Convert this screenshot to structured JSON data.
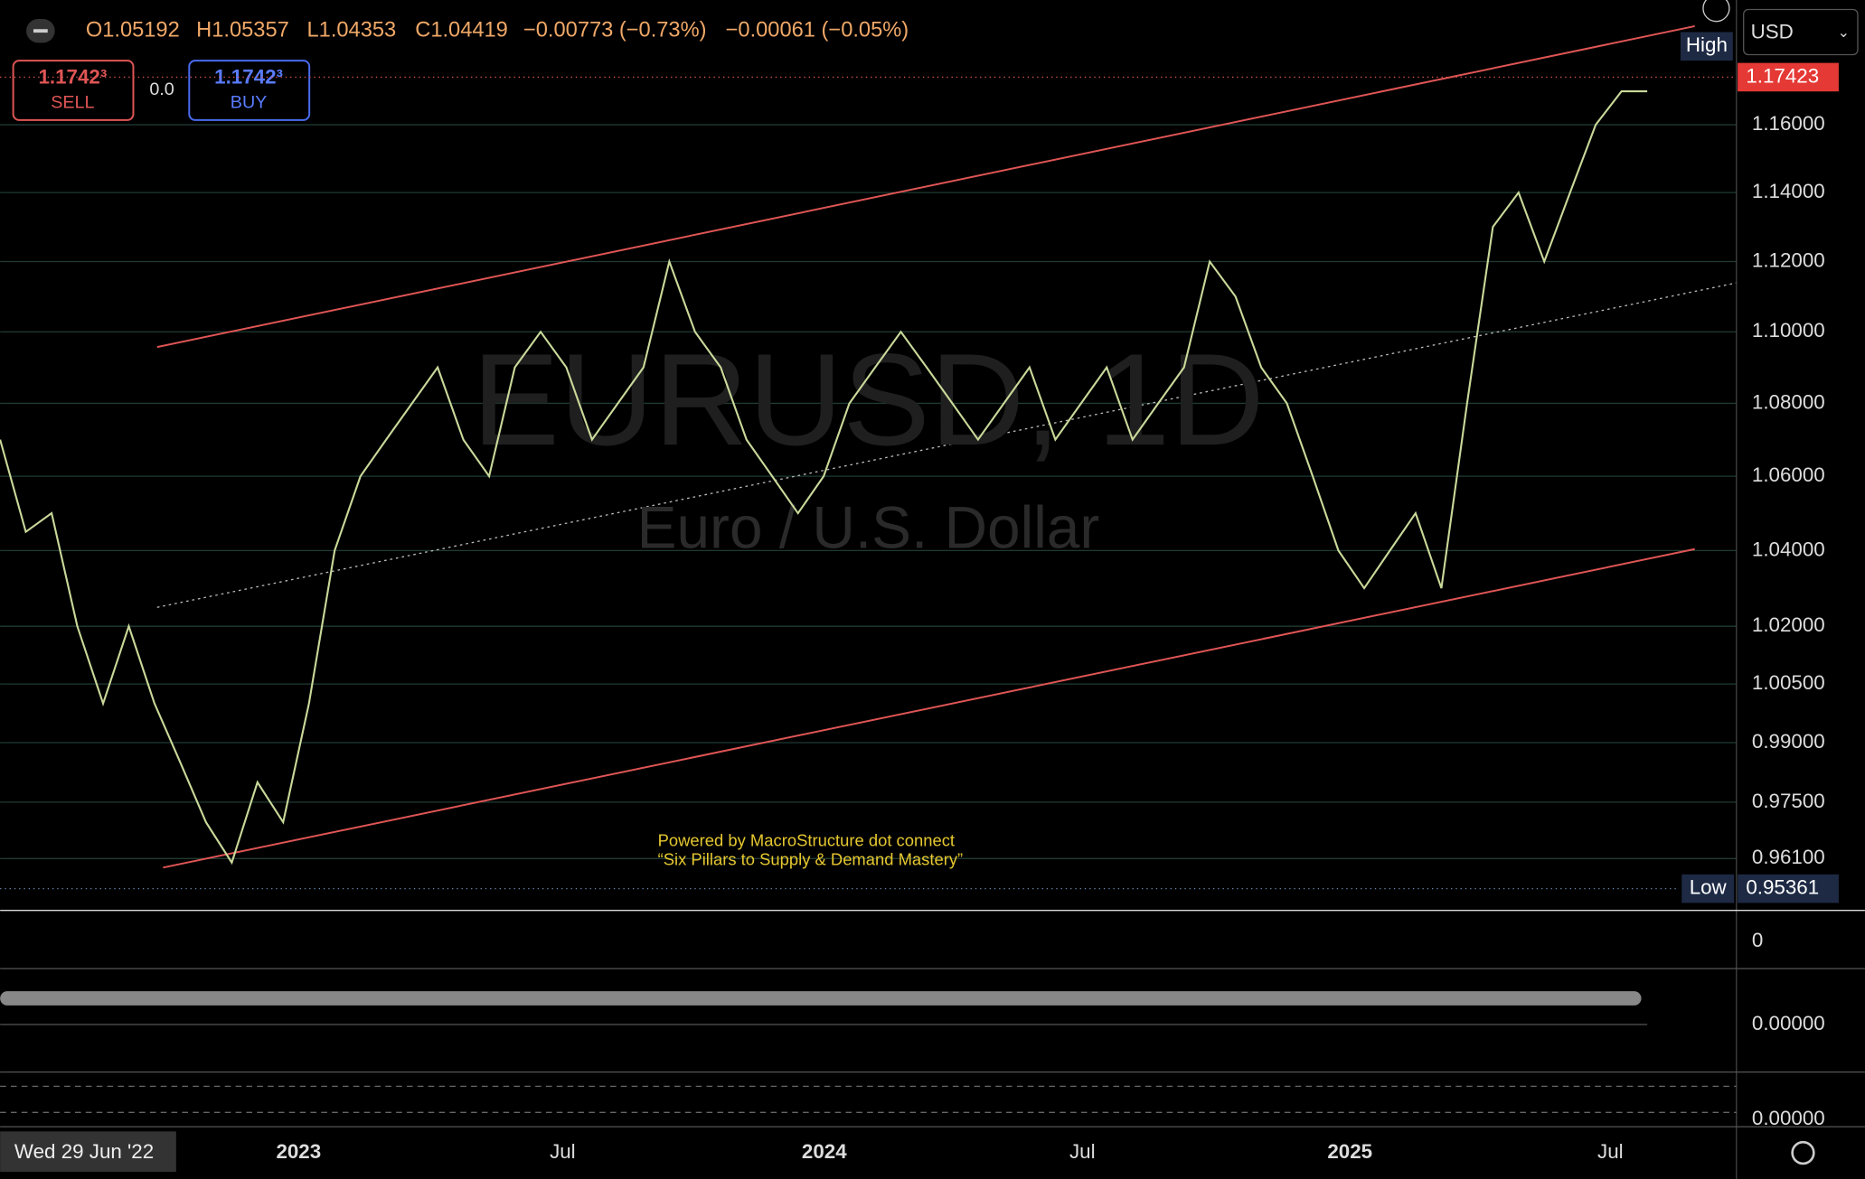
{
  "header": {
    "open": "O1.05192",
    "high": "H1.05357",
    "low": "L1.04353",
    "close": "C1.04419",
    "change": "−0.00773 (−0.73%)",
    "change2": "−0.00061 (−0.05%)"
  },
  "trade": {
    "sell_price": "1.1742³",
    "sell": "SELL",
    "spread": "0.0",
    "buy_price": "1.1742³",
    "buy": "BUY"
  },
  "currency": "USD",
  "watermark": {
    "symbol": "EURUSD, 1D",
    "name": "Euro / U.S. Dollar"
  },
  "credits": [
    "Powered by MacroStructure dot connect",
    "“Six Pillars to Supply & Demand Mastery”"
  ],
  "chart_data": {
    "type": "line",
    "log_scale": true,
    "color": "#c9d99a",
    "values": [
      1.07,
      1.045,
      1.05,
      1.02,
      1.0,
      1.02,
      1.0,
      0.985,
      0.97,
      0.96,
      0.98,
      0.97,
      1.0,
      1.04,
      1.06,
      1.07,
      1.08,
      1.09,
      1.07,
      1.06,
      1.09,
      1.1,
      1.09,
      1.07,
      1.08,
      1.09,
      1.12,
      1.1,
      1.09,
      1.07,
      1.06,
      1.05,
      1.06,
      1.08,
      1.09,
      1.1,
      1.09,
      1.08,
      1.07,
      1.08,
      1.09,
      1.07,
      1.08,
      1.09,
      1.07,
      1.08,
      1.09,
      1.12,
      1.11,
      1.09,
      1.08,
      1.06,
      1.04,
      1.03,
      1.04,
      1.05,
      1.03,
      1.08,
      1.13,
      1.14,
      1.12,
      1.14,
      1.16,
      1.17,
      1.17
    ],
    "ylim": [
      0.9486,
      1.1977
    ],
    "yticks": [
      {
        "value": 1.16,
        "label": "1.16000"
      },
      {
        "value": 1.14,
        "label": "1.14000"
      },
      {
        "value": 1.12,
        "label": "1.12000"
      },
      {
        "value": 1.1,
        "label": "1.10000"
      },
      {
        "value": 1.08,
        "label": "1.08000"
      },
      {
        "value": 1.06,
        "label": "1.06000"
      },
      {
        "value": 1.04,
        "label": "1.04000"
      },
      {
        "value": 1.02,
        "label": "1.02000"
      },
      {
        "value": 1.005,
        "label": "1.00500"
      },
      {
        "value": 0.99,
        "label": "0.99000"
      },
      {
        "value": 0.975,
        "label": "0.97500"
      },
      {
        "value": 0.961,
        "label": "0.96100"
      }
    ],
    "last_price": {
      "value": 1.17423,
      "label": "1.17423"
    },
    "high_label": "High",
    "low_price": {
      "value": 0.95361,
      "label": "0.95361"
    },
    "low_label": "Low",
    "x_labels": [
      "2023",
      "Jul",
      "2024",
      "Jul",
      "2025",
      "Jul"
    ],
    "crosshair_date": "Wed 29 Jun '22"
  },
  "indicators": {
    "volume_axis": "0",
    "osc1_axis": "0.00000",
    "osc2_axis": "0.00000"
  }
}
